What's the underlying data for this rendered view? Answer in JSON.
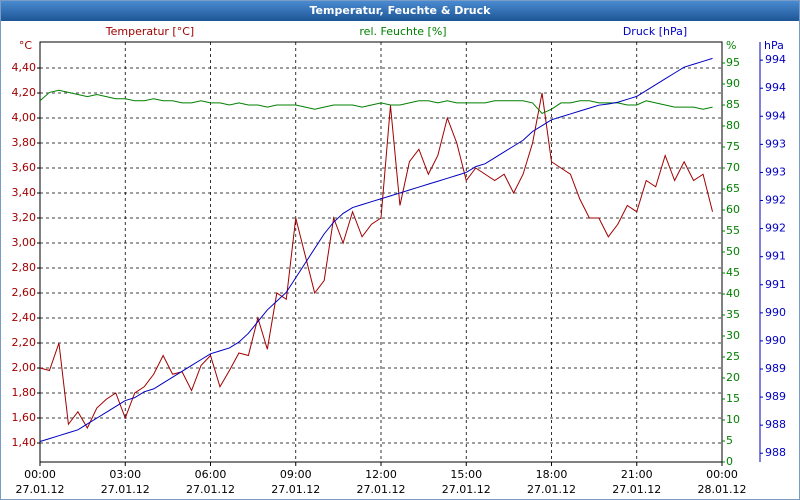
{
  "chart_data": {
    "type": "line",
    "title": "Temperatur, Feuchte & Druck",
    "x": [
      0,
      20,
      40,
      60,
      80,
      100,
      120,
      140,
      160,
      180,
      200,
      220,
      240,
      260,
      280,
      300,
      320,
      340,
      360,
      380,
      400,
      420,
      440,
      460,
      480,
      500,
      520,
      540,
      560,
      580,
      600,
      620,
      640,
      660,
      680,
      700,
      720,
      740,
      760,
      780,
      800,
      820,
      840,
      860,
      880,
      900,
      920,
      940,
      960,
      980,
      1000,
      1020,
      1040,
      1060,
      1080,
      1100,
      1120,
      1140,
      1160,
      1180,
      1200,
      1220,
      1240,
      1260,
      1280,
      1300,
      1320,
      1340,
      1360,
      1380,
      1400,
      1420,
      1440
    ],
    "xlim": [
      0,
      1440
    ],
    "xticks": [
      {
        "value": 0,
        "label": "00:00"
      },
      {
        "value": 180,
        "label": "03:00"
      },
      {
        "value": 360,
        "label": "06:00"
      },
      {
        "value": 540,
        "label": "09:00"
      },
      {
        "value": 720,
        "label": "12:00"
      },
      {
        "value": 900,
        "label": "15:00"
      },
      {
        "value": 1080,
        "label": "18:00"
      },
      {
        "value": 1260,
        "label": "21:00"
      },
      {
        "value": 1440,
        "label": "00:00"
      }
    ],
    "xtick_dates": [
      "27.01.12",
      "27.01.12",
      "27.01.12",
      "27.01.12",
      "27.01.12",
      "27.01.12",
      "27.01.12",
      "27.01.12",
      "28.01.12"
    ],
    "ylim": [
      1.248,
      4.608
    ],
    "yticks": [
      {
        "value": 1.4,
        "label": "1,40"
      },
      {
        "value": 1.6,
        "label": "1,60"
      },
      {
        "value": 1.8,
        "label": "1,80"
      },
      {
        "value": 2,
        "label": "2,00"
      },
      {
        "value": 2.2,
        "label": "2,20"
      },
      {
        "value": 2.4,
        "label": "2,40"
      },
      {
        "value": 2.6,
        "label": "2,60"
      },
      {
        "value": 2.8,
        "label": "2,80"
      },
      {
        "value": 3,
        "label": "3,00"
      },
      {
        "value": 3.2,
        "label": "3,20"
      },
      {
        "value": 3.4,
        "label": "3,40"
      },
      {
        "value": 3.6,
        "label": "3,60"
      },
      {
        "value": 3.8,
        "label": "3,80"
      },
      {
        "value": 4,
        "label": "4,00"
      },
      {
        "value": 4.2,
        "label": "4,20"
      },
      {
        "value": 4.4,
        "label": "4,40"
      }
    ],
    "y2lim": [
      0,
      100
    ],
    "y2ticks": [
      0,
      5,
      10,
      15,
      20,
      25,
      30,
      35,
      40,
      45,
      50,
      55,
      60,
      65,
      70,
      75,
      80,
      85,
      90,
      95
    ],
    "y3lim": [
      987.6,
      994.78
    ],
    "y3ticks": [
      {
        "value": 987.75,
        "label": "988"
      },
      {
        "value": 988.23,
        "label": "988"
      },
      {
        "value": 988.71,
        "label": "989"
      },
      {
        "value": 989.19,
        "label": "989"
      },
      {
        "value": 989.67,
        "label": "990"
      },
      {
        "value": 990.15,
        "label": "990"
      },
      {
        "value": 990.63,
        "label": "991"
      },
      {
        "value": 991.11,
        "label": "991"
      },
      {
        "value": 991.59,
        "label": "992"
      },
      {
        "value": 992.07,
        "label": "992"
      },
      {
        "value": 992.55,
        "label": "993"
      },
      {
        "value": 993.03,
        "label": "993"
      },
      {
        "value": 993.51,
        "label": "994"
      },
      {
        "value": 993.99,
        "label": "994"
      },
      {
        "value": 994.47,
        "label": "994"
      }
    ],
    "axis_units": {
      "y": "°C",
      "y2": "%",
      "y3": "hPa"
    },
    "grid": true,
    "series": [
      {
        "name": "Temperatur [°C]",
        "color": "#a00000",
        "axis": "y",
        "values": [
          2,
          1.98,
          2.2,
          1.55,
          1.65,
          1.52,
          1.68,
          1.75,
          1.8,
          1.6,
          1.8,
          1.85,
          1.95,
          2.1,
          1.95,
          1.97,
          1.82,
          2.02,
          2.1,
          1.85,
          1.98,
          2.12,
          2.1,
          2.4,
          2.15,
          2.6,
          2.55,
          3.2,
          2.9,
          2.6,
          2.7,
          3.2,
          3,
          3.25,
          3.05,
          3.15,
          3.2,
          4.1,
          3.3,
          3.65,
          3.75,
          3.55,
          3.7,
          4,
          3.8,
          3.5,
          3.6,
          3.55,
          3.5,
          3.55,
          3.4,
          3.55,
          3.8,
          4.2,
          3.65,
          3.6,
          3.55,
          3.35,
          3.2,
          3.2,
          3.05,
          3.15,
          3.3,
          3.25,
          3.5,
          3.45,
          3.7,
          3.5,
          3.65,
          3.5,
          3.55,
          3.25,
          null
        ]
      },
      {
        "name": "rel. Feuchte [%]",
        "color": "#008000",
        "axis": "y2",
        "values": [
          86,
          88,
          88.5,
          88,
          87.5,
          87,
          87.5,
          87,
          86.5,
          86.5,
          86,
          86,
          86.5,
          86,
          86,
          85.5,
          85.5,
          86,
          85.5,
          85.5,
          85,
          85.5,
          85,
          85,
          84.5,
          85,
          85,
          85,
          84.5,
          84,
          84.5,
          85,
          85,
          85,
          84.5,
          85,
          85.5,
          85,
          85,
          85.5,
          86,
          86,
          85.5,
          86,
          85.5,
          85.5,
          85.5,
          85.5,
          86,
          86,
          86,
          86,
          85.5,
          83,
          84,
          85.5,
          85.5,
          86,
          86,
          85.5,
          85.5,
          85.5,
          85,
          85,
          86,
          85.5,
          85,
          84.5,
          84.5,
          84.5,
          84,
          84.5,
          null
        ]
      },
      {
        "name": "Druck [hPa]",
        "color": "#0000c0",
        "axis": "y3",
        "values": [
          987.95,
          988,
          988.05,
          988.1,
          988.15,
          988.25,
          988.35,
          988.45,
          988.55,
          988.65,
          988.7,
          988.8,
          988.85,
          988.95,
          989.05,
          989.15,
          989.25,
          989.35,
          989.45,
          989.5,
          989.55,
          989.65,
          989.8,
          990,
          990.2,
          990.35,
          990.5,
          990.75,
          991,
          991.25,
          991.5,
          991.7,
          991.85,
          991.95,
          992,
          992.05,
          992.1,
          992.15,
          992.2,
          992.25,
          992.3,
          992.35,
          992.4,
          992.45,
          992.5,
          992.55,
          992.65,
          992.7,
          992.8,
          992.9,
          993,
          993.1,
          993.25,
          993.35,
          993.45,
          993.5,
          993.55,
          993.6,
          993.65,
          993.7,
          993.72,
          993.75,
          993.8,
          993.85,
          993.95,
          994.05,
          994.15,
          994.25,
          994.35,
          994.4,
          994.45,
          994.5,
          null
        ]
      }
    ]
  }
}
